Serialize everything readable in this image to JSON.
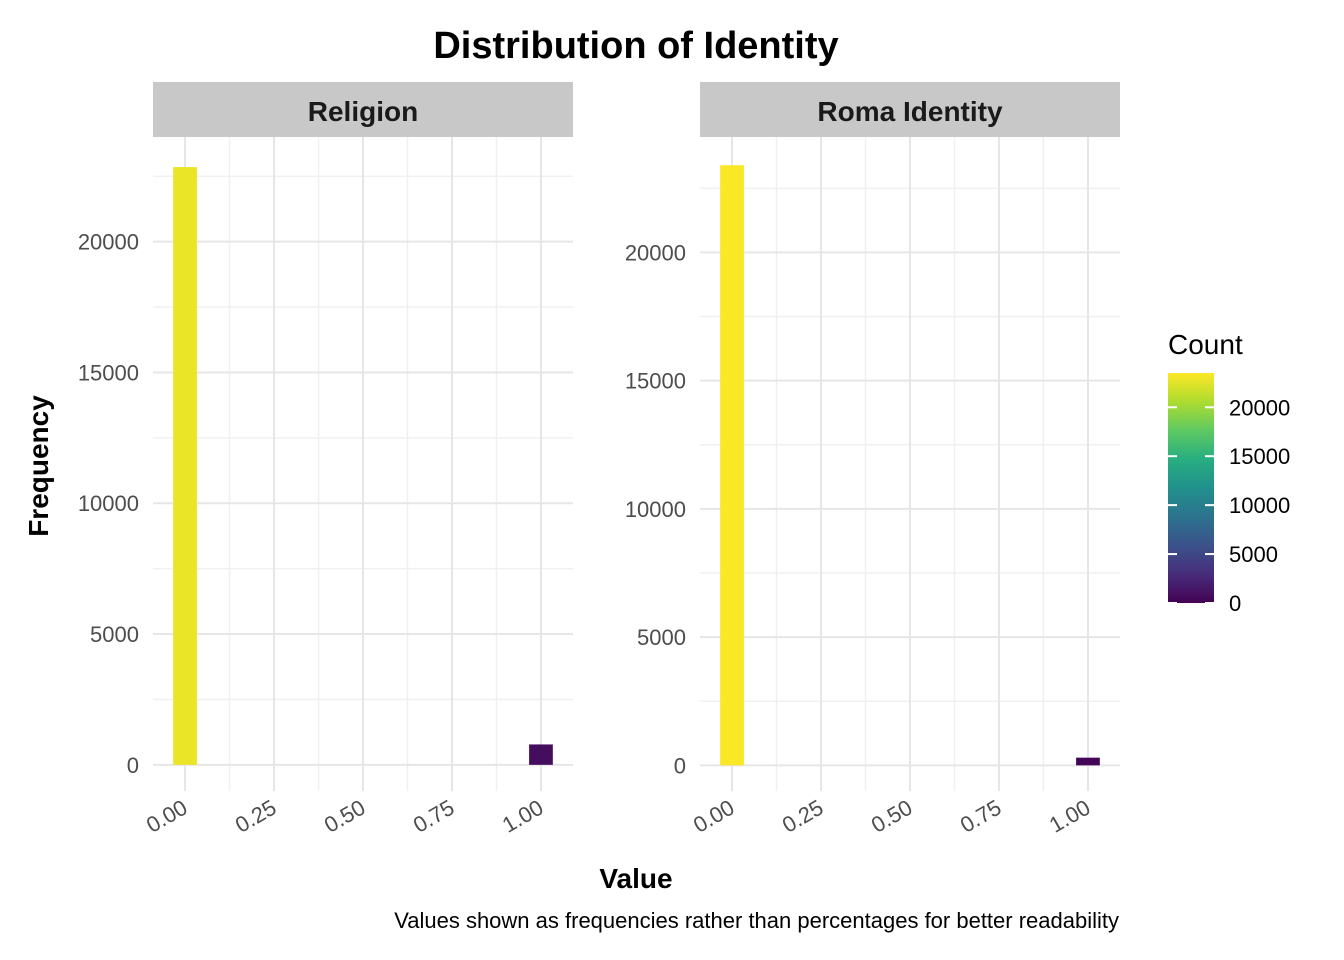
{
  "chart_data": {
    "type": "bar",
    "title": "Distribution of Identity",
    "xlabel": "Value",
    "ylabel": "Frequency",
    "caption": "Values shown as frequencies rather than percentages for better readability",
    "fill_scale": {
      "title": "Count",
      "palette": "viridis",
      "limits": [
        0,
        23500
      ],
      "ticks": [
        0,
        5000,
        10000,
        15000,
        20000
      ],
      "tick_labels": [
        "0",
        "5000",
        "10000",
        "15000",
        "20000"
      ]
    },
    "panels": [
      {
        "name": "Religion",
        "x_ticks": [
          0,
          0.25,
          0.5,
          0.75,
          1
        ],
        "x_tick_labels": [
          "0.00",
          "0.25",
          "0.50",
          "0.75",
          "1.00"
        ],
        "y_ticks": [
          0,
          5000,
          10000,
          15000,
          20000
        ],
        "y_tick_labels": [
          "0",
          "5000",
          "10000",
          "15000",
          "20000"
        ],
        "ylim": [
          -1000,
          24000
        ],
        "bars": [
          {
            "x": 0,
            "count": 22850
          },
          {
            "x": 1,
            "count": 780
          }
        ]
      },
      {
        "name": "Roma Identity",
        "x_ticks": [
          0,
          0.25,
          0.5,
          0.75,
          1
        ],
        "x_tick_labels": [
          "0.00",
          "0.25",
          "0.50",
          "0.75",
          "1.00"
        ],
        "y_ticks": [
          0,
          5000,
          10000,
          15000,
          20000
        ],
        "y_tick_labels": [
          "0",
          "5000",
          "10000",
          "15000",
          "20000"
        ],
        "ylim": [
          -1000,
          24500
        ],
        "bars": [
          {
            "x": 0,
            "count": 23400
          },
          {
            "x": 1,
            "count": 300
          }
        ]
      }
    ],
    "x_domain": [
      -0.09,
      1.09
    ],
    "bin_width": 0.0667
  }
}
